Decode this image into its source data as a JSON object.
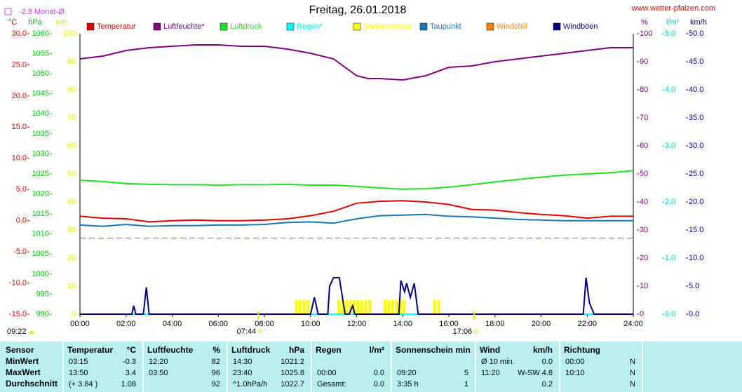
{
  "chart_data": {
    "type": "line",
    "title": "Freitag, 26.01.2018",
    "source": "www.wetter-pfalzen.com",
    "monthly_average": {
      "label": "-2.8 Monat-Ø",
      "value": -2.8,
      "color": "#d040d0",
      "axis": 0
    },
    "xlim": [
      0,
      24
    ],
    "xticks": [
      {
        "value": 0,
        "label": "00:00"
      },
      {
        "value": 2,
        "label": "02:00"
      },
      {
        "value": 4,
        "label": "04:00"
      },
      {
        "value": 6,
        "label": "06:00"
      },
      {
        "value": 8,
        "label": "08:00"
      },
      {
        "value": 10,
        "label": "10:00"
      },
      {
        "value": 12,
        "label": "12:00"
      },
      {
        "value": 14,
        "label": "14:00"
      },
      {
        "value": 16,
        "label": "16:00"
      },
      {
        "value": 18,
        "label": "18:00"
      },
      {
        "value": 20,
        "label": "20:00"
      },
      {
        "value": 22,
        "label": "22:00"
      },
      {
        "value": 24,
        "label": "24:00"
      }
    ],
    "axes": [
      {
        "unit": "°C",
        "side": "left",
        "color": "#e00000",
        "lim": [
          -15,
          30
        ],
        "ticks": [
          {
            "value": -15,
            "label": "-15.0"
          },
          {
            "value": -10,
            "label": "-10.0"
          },
          {
            "value": -5,
            "label": "-5.0"
          },
          {
            "value": 0,
            "label": "0.0"
          },
          {
            "value": 5,
            "label": "5.0"
          },
          {
            "value": 10,
            "label": "10.0"
          },
          {
            "value": 15,
            "label": "15.0"
          },
          {
            "value": 20,
            "label": "20.0"
          },
          {
            "value": 25,
            "label": "25.0"
          },
          {
            "value": 30,
            "label": "30.0"
          }
        ]
      },
      {
        "unit": "hPa",
        "side": "left",
        "color": "#00c000",
        "lim": [
          990,
          1060
        ],
        "ticks": [
          990,
          995,
          1000,
          1005,
          1010,
          1015,
          1020,
          1025,
          1030,
          1035,
          1040,
          1045,
          1050,
          1055,
          1060
        ]
      },
      {
        "unit": "min",
        "side": "left",
        "color": "#e8e800",
        "lim": [
          0,
          100
        ],
        "ticks": [
          0,
          10,
          20,
          30,
          40,
          50,
          60,
          70,
          80,
          90,
          100
        ]
      },
      {
        "unit": "%",
        "side": "right",
        "color": "#800080",
        "lim": [
          0,
          100
        ],
        "ticks": [
          0,
          10,
          20,
          30,
          40,
          50,
          60,
          70,
          80,
          90,
          100
        ]
      },
      {
        "unit": "l/m²",
        "side": "right",
        "color": "#00d0d0",
        "lim": [
          0,
          5
        ],
        "ticks": [
          {
            "value": 0,
            "label": "0.0"
          },
          {
            "value": 1,
            "label": "1.0"
          },
          {
            "value": 2,
            "label": "2.0"
          },
          {
            "value": 3,
            "label": "3.0"
          },
          {
            "value": 4,
            "label": "4.0"
          },
          {
            "value": 5,
            "label": "5.0"
          }
        ]
      },
      {
        "unit": "km/h",
        "side": "right",
        "color": "#000080",
        "lim": [
          0,
          50
        ],
        "ticks": [
          {
            "value": 0,
            "label": "0.0"
          },
          {
            "value": 5,
            "label": "5.0"
          },
          {
            "value": 10,
            "label": "10.0"
          },
          {
            "value": 15,
            "label": "15.0"
          },
          {
            "value": 20,
            "label": "20.0"
          },
          {
            "value": 25,
            "label": "25.0"
          },
          {
            "value": 30,
            "label": "30.0"
          },
          {
            "value": 35,
            "label": "35.0"
          },
          {
            "value": 40,
            "label": "40.0"
          },
          {
            "value": 45,
            "label": "45.0"
          },
          {
            "value": 50,
            "label": "50.0"
          }
        ]
      }
    ],
    "series": [
      {
        "name": "Temperatur",
        "color": "#e00000",
        "axis": 0,
        "x": [
          0,
          1,
          2,
          3,
          4,
          5,
          6,
          7,
          8,
          9,
          10,
          11,
          12,
          13,
          14,
          15,
          16,
          17,
          18,
          19,
          20,
          21,
          22,
          23,
          24
        ],
        "values": [
          0.7,
          0.4,
          0.3,
          -0.2,
          0.0,
          0.1,
          0.0,
          0.0,
          0.1,
          0.3,
          0.8,
          1.5,
          2.8,
          3.1,
          3.2,
          3.0,
          2.6,
          1.8,
          1.7,
          1.3,
          1.0,
          0.8,
          0.4,
          0.7,
          0.7
        ]
      },
      {
        "name": "Luftfeuchte*",
        "color": "#800080",
        "axis": 3,
        "x": [
          0,
          1,
          2,
          3,
          4,
          5,
          6,
          7,
          8,
          9,
          10,
          11,
          12,
          12.5,
          13,
          14,
          15,
          16,
          17,
          18,
          19,
          20,
          21,
          22,
          23,
          24
        ],
        "values": [
          91,
          92,
          94,
          95,
          95.5,
          96,
          96,
          95.5,
          95.5,
          94.5,
          93,
          91,
          85,
          84,
          84,
          83.5,
          85,
          88,
          88.5,
          90,
          91,
          92,
          93,
          94,
          95,
          95
        ]
      },
      {
        "name": "Luftdruck",
        "color": "#22e022",
        "axis": 1,
        "x": [
          0,
          1,
          2,
          3,
          4,
          5,
          6,
          7,
          8,
          9,
          10,
          11,
          12,
          13,
          14,
          15,
          16,
          17,
          18,
          19,
          20,
          21,
          22,
          23,
          24
        ],
        "values": [
          1023.4,
          1023.1,
          1022.6,
          1022.4,
          1022.3,
          1022.3,
          1022.2,
          1022.3,
          1022.3,
          1022.4,
          1022.2,
          1022.2,
          1021.9,
          1021.5,
          1021.2,
          1021.3,
          1021.7,
          1022.3,
          1023.0,
          1023.6,
          1024.2,
          1024.7,
          1025.0,
          1025.3,
          1025.8
        ]
      },
      {
        "name": "Regen*",
        "color": "#00ffff",
        "axis": 4,
        "x": [
          0,
          24
        ],
        "values": [
          0,
          0
        ]
      },
      {
        "name": "Sonnenschein",
        "color": "#ffff00",
        "axis": 2,
        "style": "bar",
        "x": [
          9.33,
          9.5,
          9.67,
          9.83,
          11.17,
          11.33,
          11.5,
          11.67,
          11.83,
          12.0,
          12.17,
          12.33,
          12.5,
          13.17,
          13.33,
          13.5,
          13.67,
          13.83,
          14.0,
          15.33,
          15.5
        ],
        "values": [
          5,
          5,
          5,
          5,
          5,
          5,
          5,
          5,
          5,
          5,
          5,
          5,
          5,
          5,
          5,
          5,
          5,
          5,
          5,
          5,
          5
        ]
      },
      {
        "name": "Taupunkt",
        "color": "#1a78b8",
        "axis": 0,
        "x": [
          0,
          1,
          2,
          3,
          4,
          5,
          6,
          7,
          8,
          9,
          10,
          11,
          12,
          13,
          14,
          15,
          16,
          17,
          18,
          19,
          20,
          21,
          22,
          23,
          24
        ],
        "values": [
          -0.7,
          -0.9,
          -0.6,
          -0.9,
          -0.8,
          -0.8,
          -0.7,
          -0.7,
          -0.6,
          -0.3,
          -0.2,
          -0.4,
          0.3,
          0.8,
          0.9,
          1.0,
          0.7,
          0.6,
          0.4,
          0.2,
          0.1,
          0.0,
          0.0,
          0.0,
          0.0
        ]
      },
      {
        "name": "Windchill",
        "color": "#ff8000",
        "axis": 0,
        "x": [],
        "values": []
      },
      {
        "name": "Windböen",
        "color": "#000080",
        "axis": 5,
        "x": [
          0,
          2.25,
          2.33,
          2.42,
          2.75,
          2.88,
          3.0,
          10.0,
          10.17,
          10.33,
          10.75,
          10.83,
          11.0,
          11.25,
          11.5,
          11.67,
          11.83,
          11.92,
          13.83,
          13.92,
          14.08,
          14.17,
          14.33,
          14.5,
          14.67,
          21.83,
          21.95,
          22.1,
          22.3,
          24
        ],
        "values": [
          0,
          0,
          1.5,
          0,
          0,
          4.8,
          0,
          0,
          3,
          0,
          0,
          5,
          6.5,
          6.5,
          0,
          0,
          1.5,
          0,
          0,
          6,
          4,
          5.5,
          3,
          5.5,
          0,
          0,
          6.5,
          2,
          0,
          0
        ]
      }
    ],
    "annotations": [
      {
        "text": "09:22"
      },
      {
        "text": "07:44",
        "x": 7.73
      },
      {
        "text": "17:06",
        "x": 17.1
      }
    ]
  },
  "table": {
    "first_header": "Sensor",
    "columns": [
      {
        "title": "Temperatur",
        "unit": "°C"
      },
      {
        "title": "Luftfeuchte",
        "unit": "%"
      },
      {
        "title": "Luftdruck",
        "unit": "hPa"
      },
      {
        "title": "Regen",
        "unit": "l/m²"
      },
      {
        "title": "Sonnenschein min"
      },
      {
        "title": "Wind",
        "unit": "km/h"
      },
      {
        "title": "Richtung"
      }
    ],
    "rows": [
      {
        "label": "MinWert",
        "cells": [
          [
            "03:15",
            "-0.3"
          ],
          [
            "12:20",
            "82"
          ],
          [
            "14:30",
            "1021.2"
          ],
          [
            null,
            null
          ],
          [
            null,
            null
          ],
          [
            "Ø 10 min.",
            "0.0"
          ],
          [
            "00:00",
            "N"
          ]
        ]
      },
      {
        "label": "MaxWert",
        "cells": [
          [
            "13:50",
            "3.4"
          ],
          [
            "03:50",
            "96"
          ],
          [
            "23:40",
            "1025.8"
          ],
          [
            "00:00",
            "0.0"
          ],
          [
            "09:20",
            "5"
          ],
          [
            "11:20",
            "W-SW 4.8"
          ],
          [
            "10:10",
            "N"
          ]
        ]
      },
      {
        "label": "Durchschnitt",
        "cells": [
          [
            "(+ 3.84 )",
            "1.08"
          ],
          [
            null,
            "92"
          ],
          [
            "^1.0hPa/h",
            "1022.7"
          ],
          [
            "Gesamt:",
            "0.0"
          ],
          [
            "3:35 h",
            "1"
          ],
          [
            null,
            "0.2"
          ],
          [
            null,
            "N"
          ]
        ]
      }
    ]
  }
}
